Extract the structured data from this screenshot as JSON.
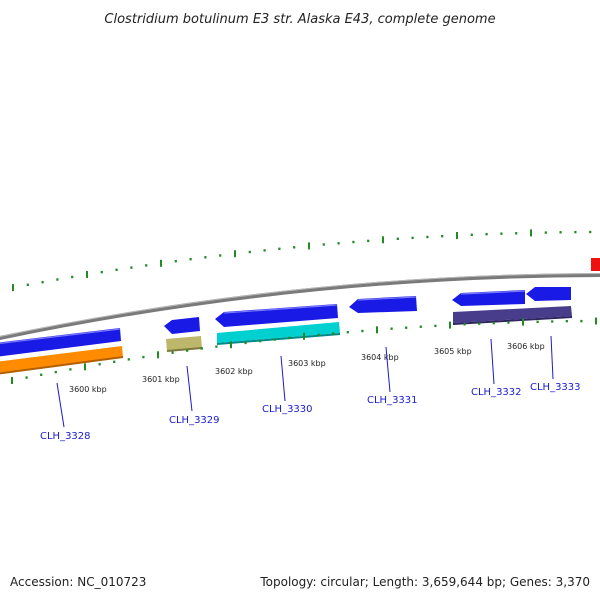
{
  "title": "Clostridium botulinum E3 str. Alaska E43, complete genome",
  "footer": {
    "accession": "Accession: NC_010723",
    "summary": "Topology: circular; Length: 3,659,644 bp; Genes: 3,370"
  },
  "ticks": [
    {
      "label": "3600 kbp"
    },
    {
      "label": "3601 kbp"
    },
    {
      "label": "3602 kbp"
    },
    {
      "label": "3603 kbp"
    },
    {
      "label": "3604 kbp"
    },
    {
      "label": "3605 kbp"
    },
    {
      "label": "3606 kbp"
    }
  ],
  "genes": [
    {
      "label": "CLH_3328"
    },
    {
      "label": "CLH_3329"
    },
    {
      "label": "CLH_3330"
    },
    {
      "label": "CLH_3331"
    },
    {
      "label": "CLH_3332"
    },
    {
      "label": "CLH_3333"
    }
  ],
  "colors": {
    "backbone": "#808080",
    "cds": "#1a1ae6",
    "orange": "#ff8c00",
    "khaki": "#bdb76b",
    "cyan": "#00d0d0",
    "slate": "#483d8b",
    "red": "#ee1111",
    "tick": "#228b22",
    "label": "#1a1ad0"
  }
}
